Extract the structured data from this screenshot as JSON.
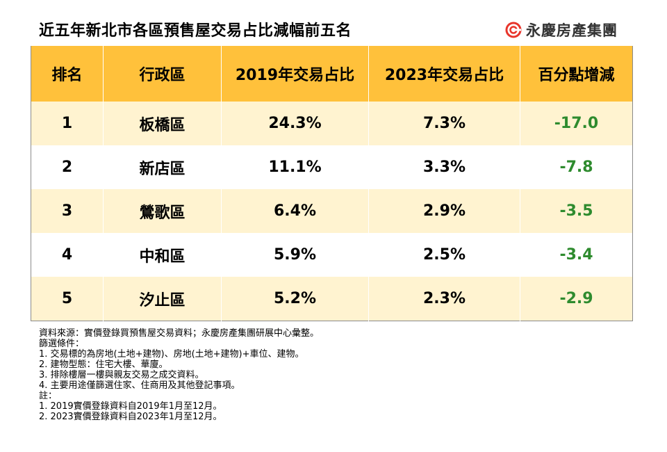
{
  "title": "近五年新北市各區預售屋交易占比減幅前五名",
  "logo": {
    "text": "永慶房產集團",
    "icon": "brand-ring-icon",
    "color": "#E8352B"
  },
  "colors": {
    "header": "#FFC13B",
    "row_alt": "#FFF3D0",
    "negative": "#2E8B2E"
  },
  "chart_data": {
    "type": "table",
    "columns": [
      "排名",
      "行政區",
      "2019年交易占比",
      "2023年交易占比",
      "百分點增減"
    ],
    "rows": [
      [
        "1",
        "板橋區",
        "24.3%",
        "7.3%",
        "-17.0"
      ],
      [
        "2",
        "新店區",
        "11.1%",
        "3.3%",
        "-7.8"
      ],
      [
        "3",
        "鶯歌區",
        "6.4%",
        "2.9%",
        "-3.5"
      ],
      [
        "4",
        "中和區",
        "5.9%",
        "2.5%",
        "-3.4"
      ],
      [
        "5",
        "汐止區",
        "5.2%",
        "2.3%",
        "-2.9"
      ]
    ]
  },
  "notes": [
    "資料來源：實價登錄買預售屋交易資料；永慶房產集團研展中心彙整。",
    "篩選條件：",
    "1. 交易標的為房地(土地+建物)、房地(土地+建物)+車位、建物。",
    "2. 建物型態：住宅大樓、華廈。",
    "3. 排除樓層一樓與親友交易之成交資料。",
    "4. 主要用途僅篩選住家、住商用及其他登記事項。",
    "註：",
    "1. 2019實價登錄資料自2019年1月至12月。",
    "2. 2023實價登錄資料自2023年1月至12月。"
  ]
}
